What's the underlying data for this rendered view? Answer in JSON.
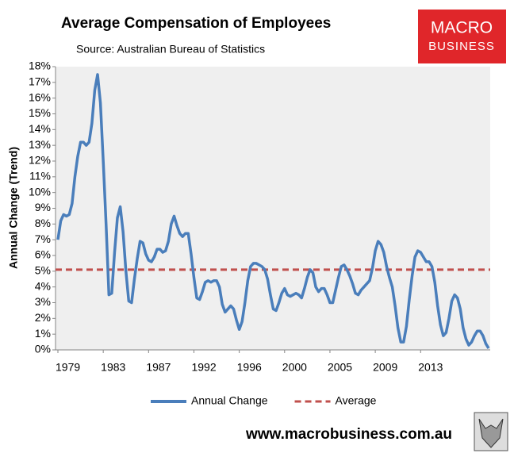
{
  "chart_data": {
    "type": "line",
    "title": "Average Compensation of Employees",
    "subtitle": "Source: Australian Bureau of Statistics",
    "y_label": "Annual Change (Trend)",
    "logo": {
      "line1": "MACRO",
      "line2": "BUSINESS"
    },
    "footer": "www.macrobusiness.com.au",
    "categories": [
      "1979",
      null,
      null,
      null,
      null,
      null,
      null,
      null,
      null,
      null,
      null,
      null,
      null,
      null,
      null,
      null,
      "1983",
      null,
      null,
      null,
      null,
      null,
      null,
      null,
      null,
      null,
      null,
      null,
      null,
      null,
      null,
      null,
      "1987",
      null,
      null,
      null,
      null,
      null,
      null,
      null,
      null,
      null,
      null,
      null,
      null,
      null,
      null,
      null,
      "1992",
      null,
      null,
      null,
      null,
      null,
      null,
      null,
      null,
      null,
      null,
      null,
      null,
      null,
      null,
      null,
      "1996",
      null,
      null,
      null,
      null,
      null,
      null,
      null,
      null,
      null,
      null,
      null,
      null,
      null,
      null,
      null,
      "2000",
      null,
      null,
      null,
      null,
      null,
      null,
      null,
      null,
      null,
      null,
      null,
      null,
      null,
      null,
      null,
      "2005",
      null,
      null,
      null,
      null,
      null,
      null,
      null,
      null,
      null,
      null,
      null,
      null,
      null,
      null,
      null,
      "2009",
      null,
      null,
      null,
      null,
      null,
      null,
      null,
      null,
      null,
      null,
      null,
      null,
      null,
      null,
      null,
      "2013",
      null,
      null,
      null,
      null,
      null,
      null,
      null,
      null,
      null,
      null,
      null,
      null,
      null,
      null,
      null,
      null,
      null,
      null,
      null,
      null,
      null,
      null,
      null,
      null
    ],
    "series": [
      {
        "name": "Annual Change",
        "color": "#4a7ebb",
        "values": [
          7,
          8.2,
          8.6,
          8.5,
          8.6,
          9.3,
          11,
          12.3,
          13.2,
          13.2,
          13.0,
          13.2,
          14.4,
          16.5,
          17.5,
          15.7,
          12,
          8,
          3.5,
          3.6,
          6.2,
          8.4,
          9.1,
          7.5,
          5,
          3.1,
          3.0,
          4.5,
          5.8,
          6.9,
          6.8,
          6.1,
          5.7,
          5.6,
          5.9,
          6.4,
          6.4,
          6.2,
          6.3,
          6.9,
          8.0,
          8.5,
          7.9,
          7.4,
          7.2,
          7.4,
          7.4,
          6.1,
          4.6,
          3.3,
          3.2,
          3.7,
          4.3,
          4.4,
          4.3,
          4.4,
          4.4,
          4.0,
          2.9,
          2.4,
          2.6,
          2.8,
          2.6,
          1.9,
          1.3,
          1.8,
          3.0,
          4.4,
          5.3,
          5.5,
          5.5,
          5.4,
          5.3,
          5.1,
          4.5,
          3.5,
          2.6,
          2.5,
          3.0,
          3.6,
          3.9,
          3.5,
          3.4,
          3.5,
          3.6,
          3.5,
          3.3,
          3.9,
          4.6,
          5.1,
          4.9,
          4.0,
          3.7,
          3.9,
          3.9,
          3.5,
          3.0,
          3.0,
          3.8,
          4.6,
          5.3,
          5.4,
          5.1,
          4.7,
          4.2,
          3.6,
          3.5,
          3.8,
          4.0,
          4.2,
          4.4,
          5.2,
          6.3,
          6.9,
          6.7,
          6.2,
          5.3,
          4.6,
          4.0,
          2.8,
          1.4,
          0.5,
          0.5,
          1.5,
          3.2,
          4.7,
          5.9,
          6.3,
          6.2,
          5.9,
          5.6,
          5.6,
          5.3,
          4.3,
          2.8,
          1.6,
          0.9,
          1.1,
          2.0,
          3.1,
          3.5,
          3.3,
          2.6,
          1.4,
          0.7,
          0.3,
          0.5,
          0.9,
          1.2,
          1.2,
          0.9,
          0.4,
          0.1
        ]
      }
    ],
    "reference_lines": [
      {
        "name": "Average",
        "color": "#c0504d",
        "value": 5.1,
        "dashed": true
      }
    ],
    "ylim": [
      0,
      18
    ],
    "yticks": [
      {
        "value": 0,
        "label": "0%"
      },
      {
        "value": 1,
        "label": "1%"
      },
      {
        "value": 2,
        "label": "2%"
      },
      {
        "value": 3,
        "label": "3%"
      },
      {
        "value": 4,
        "label": "4%"
      },
      {
        "value": 5,
        "label": "5%"
      },
      {
        "value": 6,
        "label": "6%"
      },
      {
        "value": 7,
        "label": "7%"
      },
      {
        "value": 8,
        "label": "8%"
      },
      {
        "value": 9,
        "label": "9%"
      },
      {
        "value": 10,
        "label": "10%"
      },
      {
        "value": 11,
        "label": "11%"
      },
      {
        "value": 12,
        "label": "12%"
      },
      {
        "value": 13,
        "label": "13%"
      },
      {
        "value": 14,
        "label": "14%"
      },
      {
        "value": 15,
        "label": "15%"
      },
      {
        "value": 16,
        "label": "16%"
      },
      {
        "value": 17,
        "label": "17%"
      },
      {
        "value": 18,
        "label": "18%"
      }
    ],
    "grid": false,
    "legend": "bottom"
  }
}
